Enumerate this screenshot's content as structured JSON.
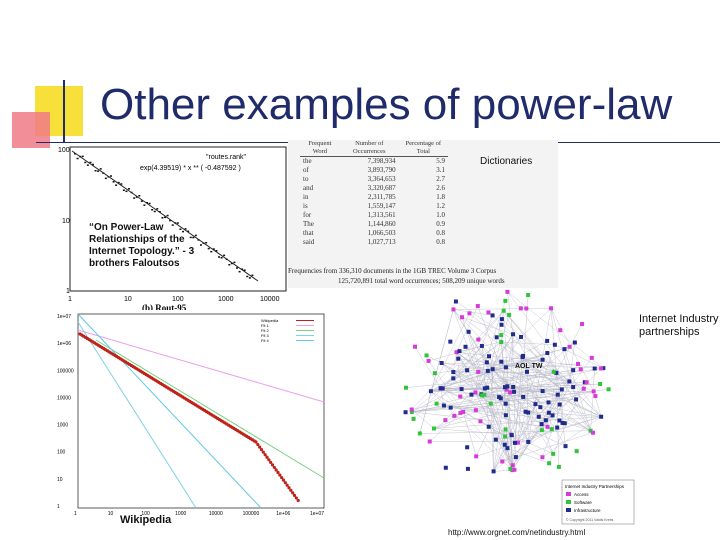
{
  "slide": {
    "title": "Other examples of power-law"
  },
  "topology_plot": {
    "y_ticks": [
      "100",
      "10",
      "1"
    ],
    "x_ticks": [
      "1",
      "10",
      "100",
      "1000",
      "10000"
    ],
    "legend_series": "\"routes.rank\"",
    "legend_fit": "exp(4.39519) * x ** ( -0.487592 )",
    "subplot_caption": "(b) Rout-95",
    "annotation": "“On Power-Law Relationships of the Internet Topology.” - 3 brothers Faloutsos"
  },
  "dictionary_table": {
    "label": "Dictionaries",
    "headers": [
      "Frequent Word",
      "Number of Occurrences",
      "Percentage of Total"
    ],
    "rows": [
      [
        "the",
        "7,398,934",
        "5.9"
      ],
      [
        "of",
        "3,893,790",
        "3.1"
      ],
      [
        "to",
        "3,364,653",
        "2.7"
      ],
      [
        "and",
        "3,320,687",
        "2.6"
      ],
      [
        "in",
        "2,311,785",
        "1.8"
      ],
      [
        "is",
        "1,559,147",
        "1.2"
      ],
      [
        "for",
        "1,313,561",
        "1.0"
      ],
      [
        "The",
        "1,144,860",
        "0.9"
      ],
      [
        "that",
        "1,066,503",
        "0.8"
      ],
      [
        "said",
        "1,027,713",
        "0.8"
      ]
    ],
    "caption_line1": "Frequencies from 336,310 documents in the 1GB TREC Volume 3 Corpus",
    "caption_line2": "125,720,891 total word occurrences; 508,209 unique words"
  },
  "wikipedia_plot": {
    "label": "Wikipedia",
    "y_ticks": [
      "1e+07",
      "1e+06",
      "100000",
      "10000",
      "1000",
      "100",
      "10",
      "1"
    ],
    "x_ticks": [
      "1",
      "10",
      "100",
      "1000",
      "10000",
      "100000",
      "1e+06",
      "1e+07"
    ],
    "legend": [
      "Wikipedia",
      "Fit 1",
      "Fit 2",
      "Fit 3",
      "Fit 4"
    ],
    "colors": {
      "data": "#c0221a",
      "fit1": "#e8a0e8",
      "fit2": "#80d080",
      "fit3": "#80d0e8",
      "fit4": "#60c8e8"
    }
  },
  "network": {
    "label": "Internet Industry partnerships",
    "node_label": "AOL TW",
    "legend_title": "Internet Industry Partnerships",
    "legend_items": [
      {
        "name": "Access",
        "color": "#d63ad8"
      },
      {
        "name": "Software",
        "color": "#2fc43a"
      },
      {
        "name": "Infrastructure",
        "color": "#1f2c8c"
      }
    ],
    "legend_copyright": "© Copyright 2011 Valdis Krebs",
    "url": "http://www.orgnet.com/netindustry.html"
  }
}
